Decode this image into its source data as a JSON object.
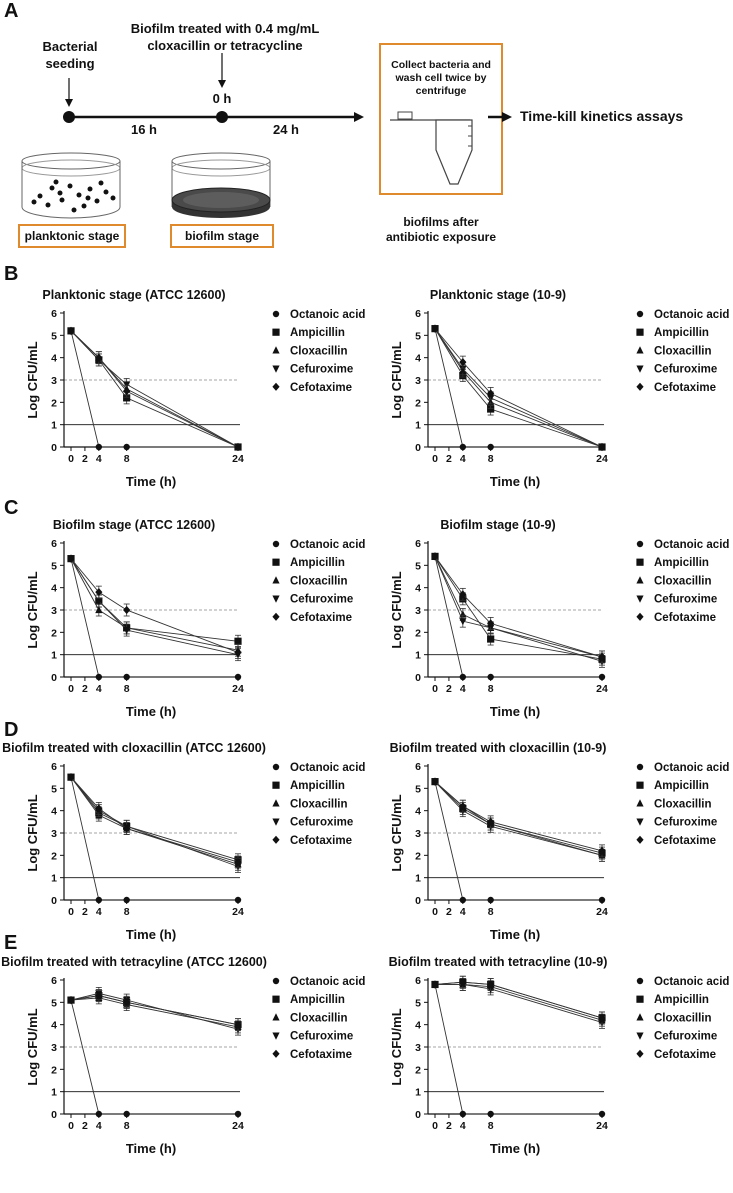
{
  "panels": {
    "A": "A",
    "B": "B",
    "C": "C",
    "D": "D",
    "E": "E"
  },
  "schema": {
    "bacterial_seeding_line1": "Bacterial",
    "bacterial_seeding_line2": "seeding",
    "treatment_line1": "Biofilm treated with 0.4 mg/mL",
    "treatment_line2": "cloxacillin or tetracycline",
    "zero_h": "0 h",
    "interval1": "16 h",
    "interval2": "24 h",
    "collect_line1": "Collect bacteria and",
    "collect_line2": "wash cell twice by",
    "collect_line3": "centrifuge",
    "assay_label": "Time-kill kinetics assays",
    "planktonic_stage": "planktonic stage",
    "biofilm_stage": "biofilm stage",
    "after_line1": "biofilms after",
    "after_line2": "antibiotic exposure"
  },
  "legend": [
    "Octanoic acid",
    "Ampicillin",
    "Cloxacillin",
    "Cefuroxime",
    "Cefotaxime"
  ],
  "chart_data": [
    {
      "type": "line",
      "title": "Planktonic stage (ATCC 12600)",
      "xlabel": "Time (h)",
      "ylabel": "Log CFU/mL",
      "x": [
        0,
        4,
        8,
        24
      ],
      "x_ticks": [
        0,
        2,
        4,
        8,
        24
      ],
      "ylim": [
        0,
        6
      ],
      "y_ticks": [
        0,
        1,
        2,
        3,
        4,
        5,
        6
      ],
      "series": [
        {
          "name": "Octanoic acid",
          "x": [
            0,
            4,
            8,
            24
          ],
          "values": [
            5.2,
            0,
            0,
            0
          ]
        },
        {
          "name": "Ampicillin",
          "x": [
            0,
            4,
            8,
            24
          ],
          "values": [
            5.2,
            3.9,
            2.2,
            0
          ]
        },
        {
          "name": "Cloxacillin",
          "x": [
            0,
            4,
            8,
            24
          ],
          "values": [
            5.2,
            4.0,
            2.6,
            0
          ]
        },
        {
          "name": "Cefuroxime",
          "x": [
            0,
            4,
            8,
            24
          ],
          "values": [
            5.2,
            3.9,
            2.8,
            0
          ]
        },
        {
          "name": "Cefotaxime",
          "x": [
            0,
            4,
            8,
            24
          ],
          "values": [
            5.2,
            4.0,
            2.5,
            0
          ]
        }
      ]
    },
    {
      "type": "line",
      "title": "Planktonic stage (10-9)",
      "xlabel": "Time (h)",
      "ylabel": "Log CFU/mL",
      "x": [
        0,
        4,
        8,
        24
      ],
      "x_ticks": [
        0,
        2,
        4,
        8,
        24
      ],
      "ylim": [
        0,
        6
      ],
      "y_ticks": [
        0,
        1,
        2,
        3,
        4,
        5,
        6
      ],
      "series": [
        {
          "name": "Octanoic acid",
          "x": [
            0,
            4,
            8,
            24
          ],
          "values": [
            5.3,
            0,
            0,
            0
          ]
        },
        {
          "name": "Ampicillin",
          "x": [
            0,
            4,
            8,
            24
          ],
          "values": [
            5.3,
            3.2,
            1.7,
            0
          ]
        },
        {
          "name": "Cloxacillin",
          "x": [
            0,
            4,
            8,
            24
          ],
          "values": [
            5.3,
            3.4,
            2.0,
            0
          ]
        },
        {
          "name": "Cefuroxime",
          "x": [
            0,
            4,
            8,
            24
          ],
          "values": [
            5.3,
            3.5,
            2.2,
            0
          ]
        },
        {
          "name": "Cefotaxime",
          "x": [
            0,
            4,
            8,
            24
          ],
          "values": [
            5.3,
            3.8,
            2.4,
            0
          ]
        }
      ]
    },
    {
      "type": "line",
      "title": "Biofilm stage (ATCC 12600)",
      "xlabel": "Time (h)",
      "ylabel": "Log CFU/mL",
      "x": [
        0,
        4,
        8,
        24
      ],
      "x_ticks": [
        0,
        2,
        4,
        8,
        24
      ],
      "ylim": [
        0,
        6
      ],
      "y_ticks": [
        0,
        1,
        2,
        3,
        4,
        5,
        6
      ],
      "series": [
        {
          "name": "Octanoic acid",
          "x": [
            0,
            4,
            8,
            24
          ],
          "values": [
            5.3,
            0,
            0,
            0
          ]
        },
        {
          "name": "Ampicillin",
          "x": [
            0,
            4,
            8,
            24
          ],
          "values": [
            5.3,
            3.4,
            2.2,
            1.6
          ]
        },
        {
          "name": "Cloxacillin",
          "x": [
            0,
            4,
            8,
            24
          ],
          "values": [
            5.3,
            3.0,
            2.2,
            1.2
          ]
        },
        {
          "name": "Cefuroxime",
          "x": [
            0,
            4,
            8,
            24
          ],
          "values": [
            5.3,
            3.4,
            2.1,
            1.0
          ]
        },
        {
          "name": "Cefotaxime",
          "x": [
            0,
            4,
            8,
            24
          ],
          "values": [
            5.3,
            3.8,
            3.0,
            1.1
          ]
        }
      ]
    },
    {
      "type": "line",
      "title": "Biofilm stage (10-9)",
      "xlabel": "Time (h)",
      "ylabel": "Log CFU/mL",
      "x": [
        0,
        4,
        8,
        24
      ],
      "x_ticks": [
        0,
        2,
        4,
        8,
        24
      ],
      "ylim": [
        0,
        6
      ],
      "y_ticks": [
        0,
        1,
        2,
        3,
        4,
        5,
        6
      ],
      "series": [
        {
          "name": "Octanoic acid",
          "x": [
            0,
            4,
            8,
            24
          ],
          "values": [
            5.4,
            0,
            0,
            0
          ]
        },
        {
          "name": "Ampicillin",
          "x": [
            0,
            4,
            8,
            24
          ],
          "values": [
            5.4,
            3.5,
            1.7,
            0.8
          ]
        },
        {
          "name": "Cloxacillin",
          "x": [
            0,
            4,
            8,
            24
          ],
          "values": [
            5.4,
            2.8,
            2.2,
            0.9
          ]
        },
        {
          "name": "Cefuroxime",
          "x": [
            0,
            4,
            8,
            24
          ],
          "values": [
            5.4,
            2.5,
            2.2,
            0.7
          ]
        },
        {
          "name": "Cefotaxime",
          "x": [
            0,
            4,
            8,
            24
          ],
          "values": [
            5.4,
            3.7,
            2.4,
            0.9
          ]
        }
      ]
    },
    {
      "type": "line",
      "title": "Biofilm treated with cloxacillin (ATCC 12600)",
      "xlabel": "Time (h)",
      "ylabel": "Log CFU/mL",
      "x": [
        0,
        4,
        8,
        24
      ],
      "x_ticks": [
        0,
        2,
        4,
        8,
        24
      ],
      "ylim": [
        0,
        6
      ],
      "y_ticks": [
        0,
        1,
        2,
        3,
        4,
        5,
        6
      ],
      "series": [
        {
          "name": "Octanoic acid",
          "x": [
            0,
            4,
            8,
            24
          ],
          "values": [
            5.5,
            0,
            0,
            0
          ]
        },
        {
          "name": "Ampicillin",
          "x": [
            0,
            4,
            8,
            24
          ],
          "values": [
            5.5,
            3.9,
            3.3,
            1.8
          ]
        },
        {
          "name": "Cloxacillin",
          "x": [
            0,
            4,
            8,
            24
          ],
          "values": [
            5.5,
            3.8,
            3.2,
            1.6
          ]
        },
        {
          "name": "Cefuroxime",
          "x": [
            0,
            4,
            8,
            24
          ],
          "values": [
            5.5,
            4.0,
            3.3,
            1.5
          ]
        },
        {
          "name": "Cefotaxime",
          "x": [
            0,
            4,
            8,
            24
          ],
          "values": [
            5.5,
            4.1,
            3.2,
            1.7
          ]
        }
      ]
    },
    {
      "type": "line",
      "title": "Biofilm treated with cloxacillin (10-9)",
      "xlabel": "Time (h)",
      "ylabel": "Log CFU/mL",
      "x": [
        0,
        4,
        8,
        24
      ],
      "x_ticks": [
        0,
        2,
        4,
        8,
        24
      ],
      "ylim": [
        0,
        6
      ],
      "y_ticks": [
        0,
        1,
        2,
        3,
        4,
        5,
        6
      ],
      "series": [
        {
          "name": "Octanoic acid",
          "x": [
            0,
            4,
            8,
            24
          ],
          "values": [
            5.3,
            0,
            0,
            0
          ]
        },
        {
          "name": "Ampicillin",
          "x": [
            0,
            4,
            8,
            24
          ],
          "values": [
            5.3,
            4.1,
            3.4,
            2.1
          ]
        },
        {
          "name": "Cloxacillin",
          "x": [
            0,
            4,
            8,
            24
          ],
          "values": [
            5.3,
            4.2,
            3.4,
            2.0
          ]
        },
        {
          "name": "Cefuroxime",
          "x": [
            0,
            4,
            8,
            24
          ],
          "values": [
            5.3,
            4.0,
            3.3,
            2.0
          ]
        },
        {
          "name": "Cefotaxime",
          "x": [
            0,
            4,
            8,
            24
          ],
          "values": [
            5.3,
            4.2,
            3.5,
            2.2
          ]
        }
      ]
    },
    {
      "type": "line",
      "title": "Biofilm treated with tetracyline (ATCC 12600)",
      "xlabel": "Time (h)",
      "ylabel": "Log CFU/mL",
      "x": [
        0,
        4,
        8,
        24
      ],
      "x_ticks": [
        0,
        2,
        4,
        8,
        24
      ],
      "ylim": [
        0,
        6
      ],
      "y_ticks": [
        0,
        1,
        2,
        3,
        4,
        5,
        6
      ],
      "series": [
        {
          "name": "Octanoic acid",
          "x": [
            0,
            4,
            8,
            24
          ],
          "values": [
            5.1,
            0,
            0,
            0
          ]
        },
        {
          "name": "Ampicillin",
          "x": [
            0,
            4,
            8,
            24
          ],
          "values": [
            5.1,
            5.3,
            5.0,
            4.0
          ]
        },
        {
          "name": "Cloxacillin",
          "x": [
            0,
            4,
            8,
            24
          ],
          "values": [
            5.1,
            5.2,
            4.9,
            3.9
          ]
        },
        {
          "name": "Cefuroxime",
          "x": [
            0,
            4,
            8,
            24
          ],
          "values": [
            5.1,
            5.4,
            5.1,
            3.8
          ]
        },
        {
          "name": "Cefotaxime",
          "x": [
            0,
            4,
            8,
            24
          ],
          "values": [
            5.1,
            5.3,
            5.0,
            4.0
          ]
        }
      ]
    },
    {
      "type": "line",
      "title": "Biofilm treated with tetracyline (10-9)",
      "xlabel": "Time (h)",
      "ylabel": "Log CFU/mL",
      "x": [
        0,
        4,
        8,
        24
      ],
      "x_ticks": [
        0,
        2,
        4,
        8,
        24
      ],
      "ylim": [
        0,
        6
      ],
      "y_ticks": [
        0,
        1,
        2,
        3,
        4,
        5,
        6
      ],
      "series": [
        {
          "name": "Octanoic acid",
          "x": [
            0,
            4,
            8,
            24
          ],
          "values": [
            5.8,
            0,
            0,
            0
          ]
        },
        {
          "name": "Ampicillin",
          "x": [
            0,
            4,
            8,
            24
          ],
          "values": [
            5.8,
            5.9,
            5.8,
            4.3
          ]
        },
        {
          "name": "Cloxacillin",
          "x": [
            0,
            4,
            8,
            24
          ],
          "values": [
            5.8,
            5.8,
            5.7,
            4.2
          ]
        },
        {
          "name": "Cefuroxime",
          "x": [
            0,
            4,
            8,
            24
          ],
          "values": [
            5.8,
            5.8,
            5.6,
            4.1
          ]
        },
        {
          "name": "Cefotaxime",
          "x": [
            0,
            4,
            8,
            24
          ],
          "values": [
            5.8,
            5.9,
            5.8,
            4.3
          ]
        }
      ]
    }
  ]
}
